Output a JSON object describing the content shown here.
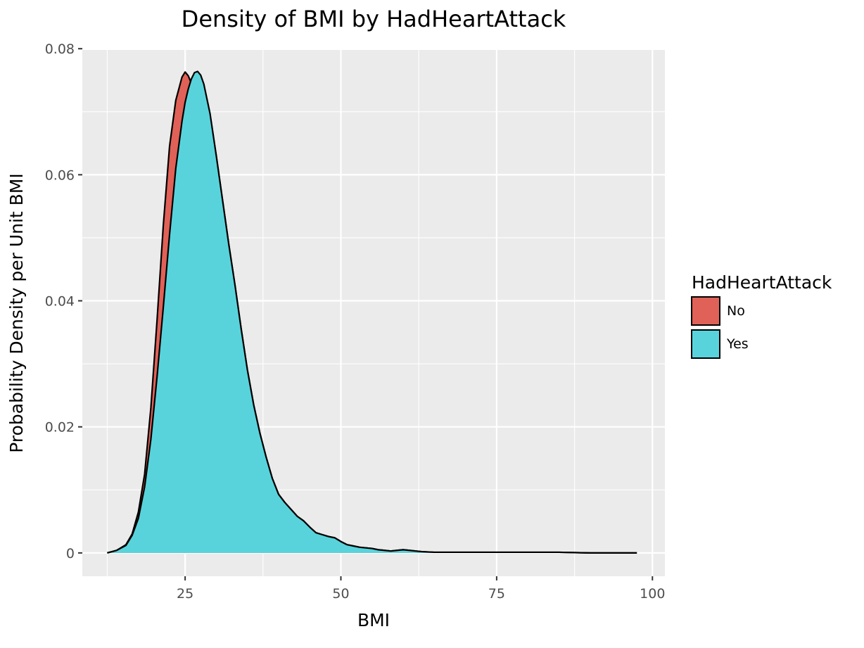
{
  "chart_data": {
    "type": "area",
    "title": "Density of BMI by HadHeartAttack",
    "xlabel": "BMI",
    "ylabel": "Probability Density per Unit BMI",
    "xlim": [
      8.5,
      102
    ],
    "ylim": [
      -0.0037,
      0.0798
    ],
    "x_ticks": [
      25,
      50,
      75,
      100
    ],
    "x_tick_labels": [
      "25",
      "50",
      "75",
      "100"
    ],
    "y_ticks": [
      0,
      0.02,
      0.04,
      0.06,
      0.08
    ],
    "y_tick_labels": [
      "0",
      "0.02",
      "0.04",
      "0.06",
      "0.08"
    ],
    "grid": true,
    "legend": {
      "title": "HadHeartAttack",
      "position": "right"
    },
    "series": [
      {
        "name": "No",
        "color": "#e06157",
        "x": [
          12.5,
          14,
          15.5,
          16.5,
          17.5,
          18.5,
          19.5,
          20.5,
          21.5,
          22.5,
          23.5,
          24.5,
          25.0,
          25.5,
          26.0,
          26.5,
          27.0,
          27.5,
          28.0,
          29.0,
          30.0,
          31.0,
          32.0,
          33.0,
          34.0,
          35.0,
          36.0,
          37.0,
          38.0,
          39.0,
          40.0,
          41.0,
          42.0,
          43.0,
          44.0,
          45.0,
          46.0,
          47.0,
          48.0,
          49.0,
          50.0,
          51.0,
          52.0,
          53.0,
          54.0,
          55.0,
          56.0,
          57.0,
          58.0,
          59.0,
          60.0,
          61.0,
          62.0,
          63.0,
          65.0,
          67.0,
          70.0,
          75.0,
          80.0,
          85.0,
          90.0,
          95.0,
          97.5
        ],
        "y": [
          0,
          0.0004,
          0.0013,
          0.003,
          0.0065,
          0.0125,
          0.023,
          0.037,
          0.052,
          0.0645,
          0.0718,
          0.0755,
          0.0763,
          0.0757,
          0.0745,
          0.0752,
          0.076,
          0.0755,
          0.0742,
          0.0695,
          0.063,
          0.056,
          0.049,
          0.0425,
          0.0355,
          0.029,
          0.0235,
          0.019,
          0.0152,
          0.0118,
          0.0093,
          0.008,
          0.0069,
          0.0058,
          0.0051,
          0.0041,
          0.0032,
          0.0029,
          0.0026,
          0.0024,
          0.0018,
          0.0013,
          0.0011,
          0.0009,
          0.0008,
          0.0007,
          0.0005,
          0.0004,
          0.0003,
          0.0004,
          0.0005,
          0.0004,
          0.0003,
          0.0002,
          0.0001,
          0.0001,
          0.0001,
          0.0001,
          0.0001,
          0.0001,
          0,
          0,
          0
        ]
      },
      {
        "name": "Yes",
        "color": "#59d3db",
        "x": [
          12.5,
          14,
          15.5,
          16.5,
          17.5,
          18.5,
          19.5,
          20.5,
          21.5,
          22.5,
          23.5,
          24.5,
          25.0,
          25.5,
          26.0,
          26.5,
          27.0,
          27.5,
          28.0,
          29.0,
          30.0,
          31.0,
          32.0,
          33.0,
          34.0,
          35.0,
          36.0,
          37.0,
          38.0,
          39.0,
          40.0,
          41.0,
          42.0,
          43.0,
          44.0,
          45.0,
          46.0,
          47.0,
          48.0,
          49.0,
          50.0,
          51.0,
          52.0,
          53.0,
          54.0,
          55.0,
          56.0,
          57.0,
          58.0,
          59.0,
          60.0,
          61.0,
          62.0,
          63.0,
          65.0,
          67.0,
          70.0,
          75.0,
          80.0,
          85.0,
          90.0,
          95.0,
          97.5
        ],
        "y": [
          0,
          0.0004,
          0.0012,
          0.0028,
          0.0055,
          0.0105,
          0.018,
          0.028,
          0.039,
          0.0505,
          0.061,
          0.0685,
          0.0715,
          0.0736,
          0.0752,
          0.0762,
          0.0764,
          0.0758,
          0.0744,
          0.0697,
          0.063,
          0.056,
          0.049,
          0.0425,
          0.0355,
          0.029,
          0.0235,
          0.019,
          0.0152,
          0.0118,
          0.0093,
          0.008,
          0.0069,
          0.0058,
          0.0051,
          0.0041,
          0.0032,
          0.0029,
          0.0026,
          0.0024,
          0.0018,
          0.0013,
          0.0011,
          0.0009,
          0.0008,
          0.0007,
          0.0005,
          0.0004,
          0.0003,
          0.0004,
          0.0005,
          0.0004,
          0.0003,
          0.0002,
          0.0001,
          0.0001,
          0.0001,
          0.0001,
          0.0001,
          0.0001,
          0,
          0,
          0
        ]
      }
    ]
  }
}
